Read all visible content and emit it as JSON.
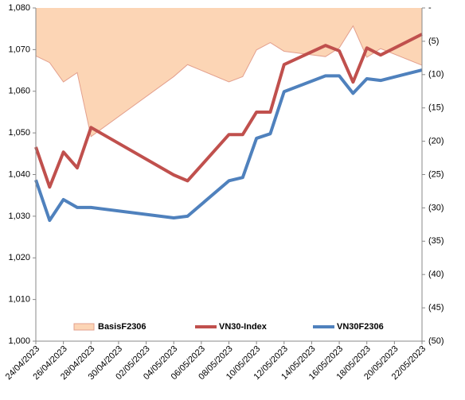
{
  "chart_data": {
    "type": "line-area",
    "x": [
      "24/04/2023",
      "25/04/2023",
      "26/04/2023",
      "27/04/2023",
      "28/04/2023",
      "04/05/2023",
      "05/05/2023",
      "08/05/2023",
      "09/05/2023",
      "10/05/2023",
      "11/05/2023",
      "12/05/2023",
      "15/05/2023",
      "16/05/2023",
      "17/05/2023",
      "18/05/2023",
      "19/05/2023",
      "22/05/2023"
    ],
    "series": [
      {
        "name": "BasisF2306",
        "color": "#fcd5b5",
        "axis": "y2",
        "kind": "area",
        "values": [
          -7.2,
          -8.2,
          -11.1,
          -9.7,
          -19.3,
          -10.3,
          -8.5,
          -11.1,
          -10.3,
          -6.3,
          -5.2,
          -6.5,
          -7.3,
          -6.0,
          -2.7,
          -7.4,
          -6.1,
          -8.6
        ]
      },
      {
        "name": "VN30-Index",
        "color": "#c0504d",
        "kind": "line",
        "values": [
          1046.6,
          1037.0,
          1045.4,
          1041.6,
          1051.3,
          1039.9,
          1038.5,
          1049.6,
          1049.6,
          1055.0,
          1055.0,
          1066.4,
          1071.0,
          1069.7,
          1062.2,
          1070.4,
          1068.7,
          1073.7
        ]
      },
      {
        "name": "VN30F2306",
        "color": "#4f81bd",
        "kind": "line",
        "values": [
          1038.7,
          1029.0,
          1034.0,
          1032.1,
          1032.1,
          1029.6,
          1030.0,
          1038.5,
          1039.3,
          1048.7,
          1049.8,
          1059.9,
          1063.7,
          1063.7,
          1059.5,
          1063.0,
          1062.6,
          1065.1
        ]
      }
    ],
    "xlim": [
      "24/04/2023",
      "22/05/2023"
    ],
    "xticks": [
      "24/04/2023",
      "26/04/2023",
      "28/04/2023",
      "30/04/2023",
      "02/05/2023",
      "04/05/2023",
      "06/05/2023",
      "08/05/2023",
      "10/05/2023",
      "12/05/2023",
      "14/05/2023",
      "16/05/2023",
      "18/05/2023",
      "20/05/2023",
      "22/05/2023"
    ],
    "ylim": [
      1000,
      1080
    ],
    "yticks": [
      {
        "value": 1000,
        "label": "1,000"
      },
      {
        "value": 1010,
        "label": "1,010"
      },
      {
        "value": 1020,
        "label": "1,020"
      },
      {
        "value": 1030,
        "label": "1,030"
      },
      {
        "value": 1040,
        "label": "1,040"
      },
      {
        "value": 1050,
        "label": "1,050"
      },
      {
        "value": 1060,
        "label": "1,060"
      },
      {
        "value": 1070,
        "label": "1,070"
      },
      {
        "value": 1080,
        "label": "1,080"
      }
    ],
    "y2lim": [
      -50,
      0
    ],
    "y2ticks": [
      {
        "value": 0,
        "label": "-"
      },
      {
        "value": -5,
        "label": "(5)"
      },
      {
        "value": -10,
        "label": "(10)"
      },
      {
        "value": -15,
        "label": "(15)"
      },
      {
        "value": -20,
        "label": "(20)"
      },
      {
        "value": -25,
        "label": "(25)"
      },
      {
        "value": -30,
        "label": "(30)"
      },
      {
        "value": -35,
        "label": "(35)"
      },
      {
        "value": -40,
        "label": "(40)"
      },
      {
        "value": -45,
        "label": "(45)"
      },
      {
        "value": -50,
        "label": "(50)"
      }
    ],
    "legend": "bottom",
    "area_edge_color": "#e3a08e"
  }
}
